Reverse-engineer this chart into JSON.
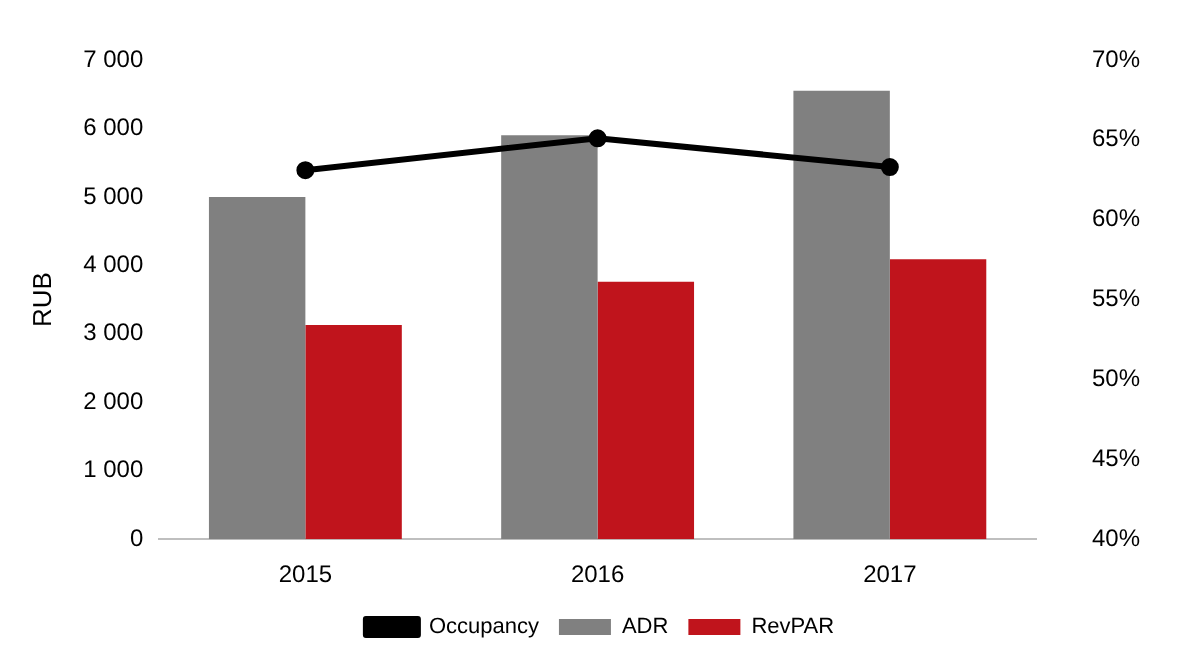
{
  "chart_data": {
    "type": "bar",
    "ylabel": "RUB",
    "categories": [
      "2015",
      "2016",
      "2017"
    ],
    "series": [
      {
        "name": "ADR",
        "color": "#808080",
        "values": [
          5000,
          5900,
          6550
        ]
      },
      {
        "name": "RevPAR",
        "color": "#c0141c",
        "values": [
          3130,
          3760,
          4090
        ]
      },
      {
        "name": "Occupancy",
        "type": "line",
        "axis": "y2",
        "color": "#000000",
        "values": [
          63.1,
          65.1,
          63.3
        ],
        "marker": "circle"
      }
    ],
    "ylim": [
      0,
      7000
    ],
    "yticks": [
      {
        "value": 0,
        "label": "0"
      },
      {
        "value": 1000,
        "label": "1 000"
      },
      {
        "value": 2000,
        "label": "2 000"
      },
      {
        "value": 3000,
        "label": "3 000"
      },
      {
        "value": 4000,
        "label": "4 000"
      },
      {
        "value": 5000,
        "label": "5 000"
      },
      {
        "value": 6000,
        "label": "6 000"
      },
      {
        "value": 7000,
        "label": "7 000"
      }
    ],
    "y2lim": [
      40,
      70
    ],
    "y2ticks": [
      {
        "value": 40,
        "label": "40%"
      },
      {
        "value": 45,
        "label": "45%"
      },
      {
        "value": 50,
        "label": "50%"
      },
      {
        "value": 55,
        "label": "55%"
      },
      {
        "value": 60,
        "label": "60%"
      },
      {
        "value": 65,
        "label": "65%"
      },
      {
        "value": 70,
        "label": "70%"
      }
    ],
    "grid": false,
    "legend": "bottom"
  }
}
